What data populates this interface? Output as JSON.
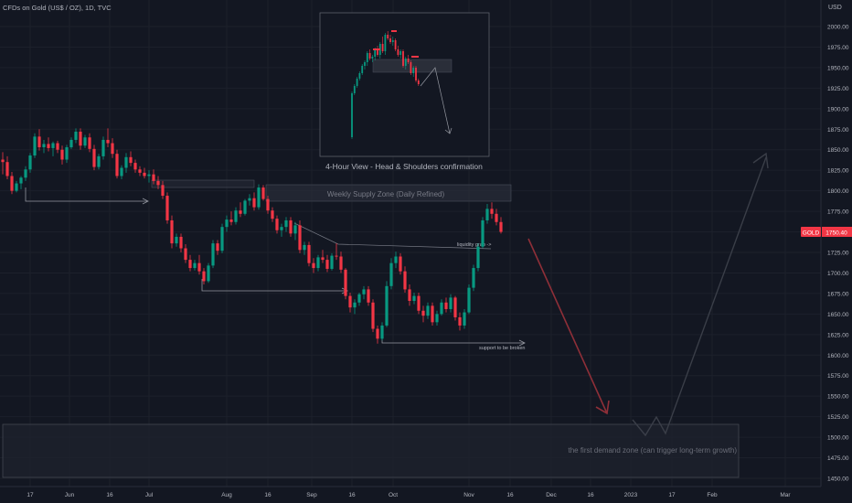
{
  "header": {
    "title": "CFDs on Gold (US$ / OZ), 1D, TVC"
  },
  "chart_data": {
    "type": "candlestick",
    "symbol": "GOLD",
    "currency": "USD",
    "ylim": [
      1440,
      2040
    ],
    "y_ticks": [
      1450,
      1475,
      1500,
      1525,
      1550,
      1575,
      1600,
      1625,
      1650,
      1675,
      1700,
      1725,
      1750,
      1775,
      1800,
      1825,
      1850,
      1875,
      1900,
      1925,
      1950,
      1975,
      2000
    ],
    "x_ticks": [
      "17",
      "Jun",
      "16",
      "Jul",
      "Aug",
      "16",
      "Sep",
      "16",
      "Oct",
      "Nov",
      "16",
      "Dec",
      "16",
      "2023",
      "17",
      "Feb",
      "Mar"
    ],
    "last_price": "1750.40",
    "candles": [
      [
        1838,
        1847,
        1820,
        1835
      ],
      [
        1835,
        1842,
        1814,
        1818
      ],
      [
        1818,
        1823,
        1796,
        1800
      ],
      [
        1800,
        1812,
        1798,
        1809
      ],
      [
        1809,
        1818,
        1802,
        1816
      ],
      [
        1816,
        1830,
        1812,
        1826
      ],
      [
        1826,
        1846,
        1822,
        1843
      ],
      [
        1843,
        1870,
        1840,
        1866
      ],
      [
        1866,
        1875,
        1849,
        1853
      ],
      [
        1853,
        1862,
        1846,
        1857
      ],
      [
        1857,
        1865,
        1848,
        1852
      ],
      [
        1852,
        1860,
        1842,
        1858
      ],
      [
        1858,
        1861,
        1846,
        1850
      ],
      [
        1850,
        1855,
        1832,
        1838
      ],
      [
        1838,
        1856,
        1834,
        1853
      ],
      [
        1853,
        1865,
        1851,
        1862
      ],
      [
        1862,
        1876,
        1858,
        1872
      ],
      [
        1872,
        1876,
        1850,
        1855
      ],
      [
        1855,
        1868,
        1852,
        1865
      ],
      [
        1865,
        1870,
        1847,
        1851
      ],
      [
        1851,
        1856,
        1825,
        1829
      ],
      [
        1829,
        1845,
        1826,
        1842
      ],
      [
        1842,
        1866,
        1838,
        1862
      ],
      [
        1862,
        1876,
        1853,
        1858
      ],
      [
        1858,
        1864,
        1840,
        1845
      ],
      [
        1845,
        1850,
        1815,
        1818
      ],
      [
        1818,
        1831,
        1814,
        1828
      ],
      [
        1828,
        1846,
        1822,
        1841
      ],
      [
        1841,
        1848,
        1830,
        1834
      ],
      [
        1834,
        1838,
        1822,
        1826
      ],
      [
        1826,
        1830,
        1818,
        1822
      ],
      [
        1822,
        1828,
        1815,
        1818
      ],
      [
        1818,
        1825,
        1810,
        1820
      ],
      [
        1820,
        1826,
        1808,
        1812
      ],
      [
        1812,
        1818,
        1802,
        1807
      ],
      [
        1807,
        1812,
        1790,
        1794
      ],
      [
        1794,
        1798,
        1760,
        1764
      ],
      [
        1764,
        1770,
        1730,
        1736
      ],
      [
        1736,
        1748,
        1732,
        1744
      ],
      [
        1744,
        1748,
        1725,
        1730
      ],
      [
        1730,
        1735,
        1712,
        1716
      ],
      [
        1716,
        1722,
        1702,
        1706
      ],
      [
        1706,
        1716,
        1703,
        1712
      ],
      [
        1712,
        1722,
        1698,
        1702
      ],
      [
        1702,
        1706,
        1686,
        1690
      ],
      [
        1690,
        1712,
        1688,
        1709
      ],
      [
        1709,
        1740,
        1706,
        1736
      ],
      [
        1736,
        1740,
        1722,
        1727
      ],
      [
        1727,
        1760,
        1724,
        1756
      ],
      [
        1756,
        1770,
        1750,
        1765
      ],
      [
        1765,
        1775,
        1758,
        1762
      ],
      [
        1762,
        1780,
        1759,
        1776
      ],
      [
        1776,
        1786,
        1768,
        1772
      ],
      [
        1772,
        1790,
        1770,
        1788
      ],
      [
        1788,
        1796,
        1782,
        1791
      ],
      [
        1791,
        1798,
        1776,
        1780
      ],
      [
        1780,
        1808,
        1777,
        1804
      ],
      [
        1804,
        1807,
        1788,
        1790
      ],
      [
        1790,
        1794,
        1772,
        1776
      ],
      [
        1776,
        1780,
        1762,
        1766
      ],
      [
        1766,
        1770,
        1748,
        1752
      ],
      [
        1752,
        1760,
        1744,
        1756
      ],
      [
        1756,
        1768,
        1750,
        1764
      ],
      [
        1764,
        1768,
        1744,
        1748
      ],
      [
        1748,
        1762,
        1740,
        1758
      ],
      [
        1758,
        1764,
        1724,
        1728
      ],
      [
        1728,
        1738,
        1722,
        1734
      ],
      [
        1734,
        1738,
        1708,
        1712
      ],
      [
        1712,
        1718,
        1700,
        1706
      ],
      [
        1706,
        1722,
        1702,
        1719
      ],
      [
        1719,
        1728,
        1712,
        1716
      ],
      [
        1716,
        1722,
        1701,
        1705
      ],
      [
        1705,
        1724,
        1703,
        1721
      ],
      [
        1721,
        1736,
        1716,
        1720
      ],
      [
        1720,
        1726,
        1700,
        1704
      ],
      [
        1704,
        1706,
        1668,
        1672
      ],
      [
        1672,
        1676,
        1652,
        1658
      ],
      [
        1658,
        1668,
        1650,
        1664
      ],
      [
        1664,
        1676,
        1660,
        1674
      ],
      [
        1674,
        1684,
        1668,
        1680
      ],
      [
        1680,
        1684,
        1660,
        1664
      ],
      [
        1664,
        1668,
        1628,
        1632
      ],
      [
        1632,
        1636,
        1614,
        1620
      ],
      [
        1620,
        1640,
        1618,
        1636
      ],
      [
        1636,
        1690,
        1634,
        1684
      ],
      [
        1684,
        1718,
        1680,
        1712
      ],
      [
        1712,
        1726,
        1706,
        1720
      ],
      [
        1720,
        1724,
        1698,
        1702
      ],
      [
        1702,
        1708,
        1676,
        1680
      ],
      [
        1680,
        1686,
        1660,
        1666
      ],
      [
        1666,
        1676,
        1662,
        1672
      ],
      [
        1672,
        1676,
        1650,
        1654
      ],
      [
        1654,
        1660,
        1640,
        1648
      ],
      [
        1648,
        1664,
        1644,
        1660
      ],
      [
        1660,
        1664,
        1636,
        1640
      ],
      [
        1640,
        1654,
        1636,
        1650
      ],
      [
        1650,
        1668,
        1648,
        1664
      ],
      [
        1664,
        1670,
        1652,
        1656
      ],
      [
        1656,
        1674,
        1652,
        1670
      ],
      [
        1670,
        1672,
        1642,
        1646
      ],
      [
        1646,
        1652,
        1630,
        1636
      ],
      [
        1636,
        1656,
        1632,
        1652
      ],
      [
        1652,
        1686,
        1650,
        1682
      ],
      [
        1682,
        1710,
        1678,
        1706
      ],
      [
        1706,
        1736,
        1702,
        1732
      ],
      [
        1732,
        1768,
        1730,
        1764
      ],
      [
        1764,
        1784,
        1760,
        1778
      ],
      [
        1778,
        1786,
        1766,
        1772
      ],
      [
        1772,
        1778,
        1758,
        1762
      ],
      [
        1762,
        1768,
        1748,
        1750
      ]
    ],
    "annotations": {
      "supply_zone_label": "Weekly Supply Zone (Daily Refined)",
      "liquidity_label": "liquidity grab ->",
      "support_label": "support to be broken",
      "demand_zone_label": "the first demand zone (can trigger long-term growth)",
      "inset_label": "4-Hour View - Head & Shoulders confirmation"
    },
    "projection_down": [
      [
        1750,
        1
      ],
      [
        1528,
        1
      ]
    ],
    "projection_up": [
      [
        1530,
        0
      ],
      [
        1513,
        0
      ],
      [
        1528,
        0
      ],
      [
        1513,
        0
      ],
      [
        1860,
        0
      ]
    ]
  }
}
